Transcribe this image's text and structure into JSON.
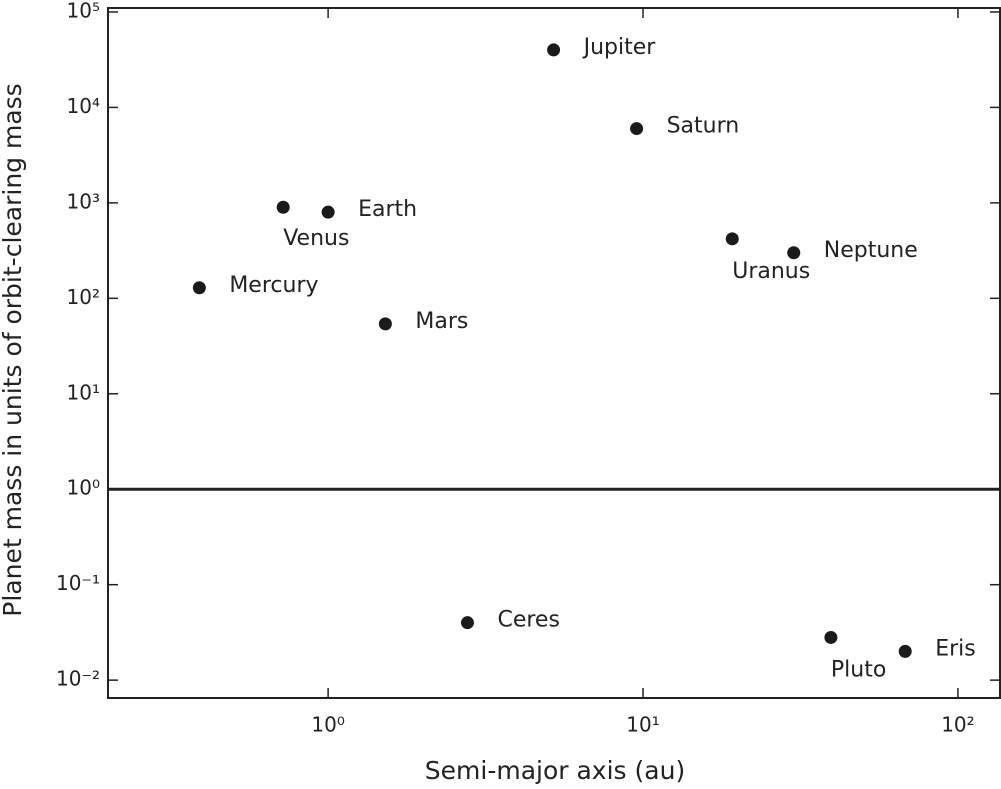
{
  "chart_data": {
    "type": "scatter",
    "xlabel": "Semi-major axis (au)",
    "ylabel": "Planet mass in units of orbit-clearing mass",
    "labels": [
      "Mercury",
      "Venus",
      "Earth",
      "Mars",
      "Jupiter",
      "Saturn",
      "Uranus",
      "Neptune",
      "Ceres",
      "Pluto",
      "Eris"
    ],
    "x": [
      0.39,
      0.72,
      1.0,
      1.52,
      5.2,
      9.54,
      19.2,
      30.1,
      2.77,
      39.5,
      68
    ],
    "values": [
      129,
      900,
      800,
      54,
      40000,
      6000,
      420,
      300,
      0.04,
      0.028,
      0.02
    ],
    "color": "#1a1a1a",
    "hline": 1,
    "xscale": "log",
    "yscale": "log",
    "xlim": [
      0.2,
      136
    ],
    "ylim": [
      0.0065,
      110000
    ],
    "xticks": [
      {
        "value": 1,
        "label": "10⁰"
      },
      {
        "value": 10,
        "label": "10¹"
      },
      {
        "value": 100,
        "label": "10²"
      }
    ],
    "yticks": [
      {
        "value": 0.01,
        "label": "10⁻²"
      },
      {
        "value": 0.1,
        "label": "10⁻¹"
      },
      {
        "value": 1,
        "label": "10⁰"
      },
      {
        "value": 10,
        "label": "10¹"
      },
      {
        "value": 100,
        "label": "10²"
      },
      {
        "value": 1000,
        "label": "10³"
      },
      {
        "value": 10000,
        "label": "10⁴"
      },
      {
        "value": 100000,
        "label": "10⁵"
      }
    ]
  }
}
